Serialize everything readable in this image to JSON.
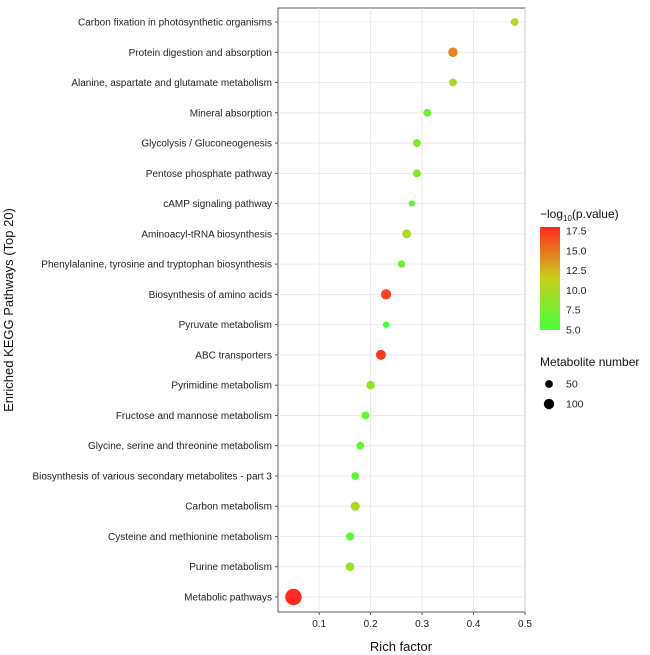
{
  "chart_data": {
    "type": "scatter",
    "xlabel": "Rich factor",
    "ylabel": "Enriched KEGG Pathways (Top 20)",
    "xlim": [
      0.02,
      0.5
    ],
    "x_ticks": [
      "0.1",
      "0.2",
      "0.3",
      "0.4",
      "0.5"
    ],
    "grid": true,
    "legend_position": "right",
    "categories": [
      "Carbon fixation in photosynthetic organisms",
      "Protein digestion and absorption",
      "Alanine, aspartate and glutamate metabolism",
      "Mineral absorption",
      "Glycolysis / Gluconeogenesis",
      "Pentose phosphate pathway",
      "cAMP signaling pathway",
      "Aminoacyl-tRNA biosynthesis",
      "Phenylalanine, tyrosine and tryptophan biosynthesis",
      "Biosynthesis of amino acids",
      "Pyruvate metabolism",
      "ABC transporters",
      "Pyrimidine metabolism",
      "Fructose and mannose metabolism",
      "Glycine, serine and threonine metabolism",
      "Biosynthesis of various secondary metabolites - part 3",
      "Carbon metabolism",
      "Cysteine and methionine metabolism",
      "Purine metabolism",
      "Metabolic pathways"
    ],
    "rich_factor": [
      0.48,
      0.36,
      0.36,
      0.31,
      0.29,
      0.29,
      0.28,
      0.27,
      0.26,
      0.23,
      0.23,
      0.22,
      0.2,
      0.19,
      0.18,
      0.17,
      0.17,
      0.16,
      0.16,
      0.05
    ],
    "neg_log10_p": [
      11,
      14.5,
      10,
      7,
      8,
      8,
      6,
      10,
      7,
      17,
      5,
      17.5,
      8.5,
      6.5,
      6.5,
      6,
      10,
      6,
      9,
      18
    ],
    "metabolite_number": [
      14,
      24,
      14,
      14,
      15,
      15,
      7,
      20,
      12,
      30,
      8,
      28,
      18,
      14,
      14,
      13,
      22,
      16,
      19,
      95
    ],
    "color_legend": {
      "title_prefix": "−log",
      "title_sub": "10",
      "title_suffix": "(p.value)",
      "ticks": [
        "17.5",
        "15.0",
        "12.5",
        "10.0",
        "7.5",
        "5.0"
      ],
      "range": [
        5,
        18
      ],
      "colors": {
        "high": "#ff2a1f",
        "mid": "#c9cf1e",
        "low": "#44ff3a"
      }
    },
    "size_legend": {
      "title": "Metabolite number",
      "items": [
        {
          "label": "50",
          "value": 50
        },
        {
          "label": "100",
          "value": 100
        }
      ]
    }
  }
}
